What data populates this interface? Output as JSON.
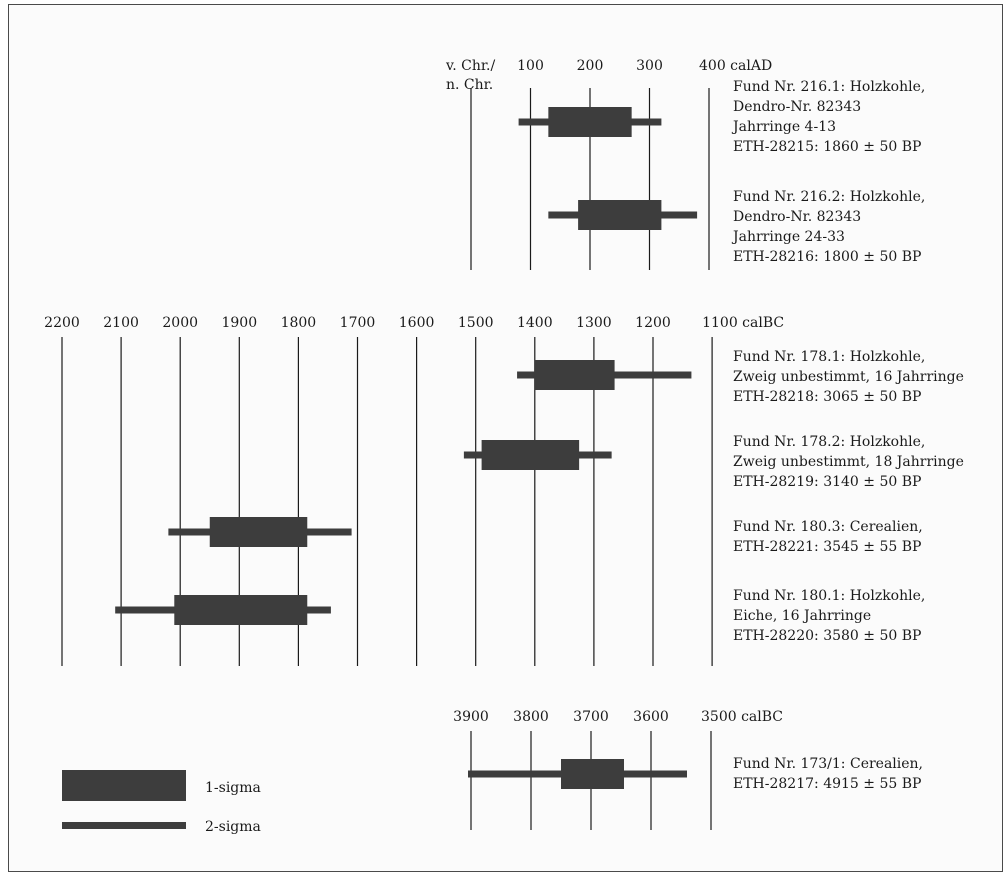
{
  "colors": {
    "bar": "#3d3d3d",
    "axis": "#1a1a1a",
    "text": "#1a1a1a"
  },
  "chart_data": [
    {
      "type": "range-bar",
      "unit": "calAD",
      "axis_label": [
        "v. Chr./",
        "n. Chr."
      ],
      "ticks": [
        0,
        100,
        200,
        300,
        400
      ],
      "tick_labels": [
        "",
        "100",
        "200",
        "300",
        "400 calAD"
      ],
      "series": [
        {
          "sigma1": [
            130,
            270
          ],
          "sigma2": [
            80,
            320
          ],
          "label": [
            "Fund Nr. 216.1: Holzkohle,",
            "Dendro-Nr. 82343",
            "Jahrringe 4-13",
            "ETH-28215: 1860 ± 50 BP"
          ]
        },
        {
          "sigma1": [
            180,
            320
          ],
          "sigma2": [
            130,
            380
          ],
          "label": [
            "Fund Nr. 216.2: Holzkohle,",
            "Dendro-Nr. 82343",
            "Jahrringe 24-33",
            "ETH-28216: 1800 ± 50 BP"
          ]
        }
      ]
    },
    {
      "type": "range-bar",
      "unit": "calBC",
      "ticks": [
        2200,
        2100,
        2000,
        1900,
        1800,
        1700,
        1600,
        1500,
        1400,
        1300,
        1200,
        1100
      ],
      "tick_labels": [
        "2200",
        "2100",
        "2000",
        "1900",
        "1800",
        "1700",
        "1600",
        "1500",
        "1400",
        "1300",
        "1200",
        "1100 calBC"
      ],
      "series": [
        {
          "sigma1": [
            1400,
            1265
          ],
          "sigma2": [
            1430,
            1135
          ],
          "label": [
            "Fund Nr. 178.1: Holzkohle,",
            "Zweig unbestimmt, 16 Jahrringe",
            "ETH-28218: 3065 ± 50 BP"
          ]
        },
        {
          "sigma1": [
            1490,
            1325
          ],
          "sigma2": [
            1520,
            1270
          ],
          "label": [
            "Fund Nr. 178.2: Holzkohle,",
            "Zweig unbestimmt, 18 Jahrringe",
            "ETH-28219: 3140 ± 50 BP"
          ]
        },
        {
          "sigma1": [
            1950,
            1785
          ],
          "sigma2": [
            2020,
            1710
          ],
          "label": [
            "Fund Nr. 180.3: Cerealien,",
            "ETH-28221: 3545 ± 55 BP"
          ]
        },
        {
          "sigma1": [
            2010,
            1785
          ],
          "sigma2": [
            2110,
            1745
          ],
          "label": [
            "Fund Nr. 180.1: Holzkohle,",
            "Eiche, 16 Jahrringe",
            "ETH-28220: 3580 ± 50 BP"
          ]
        }
      ]
    },
    {
      "type": "range-bar",
      "unit": "calBC",
      "ticks": [
        3900,
        3800,
        3700,
        3600,
        3500
      ],
      "tick_labels": [
        "3900",
        "3800",
        "3700",
        "3600",
        "3500 calBC"
      ],
      "series": [
        {
          "sigma1": [
            3750,
            3645
          ],
          "sigma2": [
            3905,
            3540
          ],
          "label": [
            "Fund Nr. 173/1: Cerealien,",
            "ETH-28217: 4915 ± 55 BP"
          ]
        }
      ]
    }
  ],
  "legend": [
    {
      "kind": "sigma1",
      "label": "1-sigma"
    },
    {
      "kind": "sigma2",
      "label": "2-sigma"
    }
  ]
}
